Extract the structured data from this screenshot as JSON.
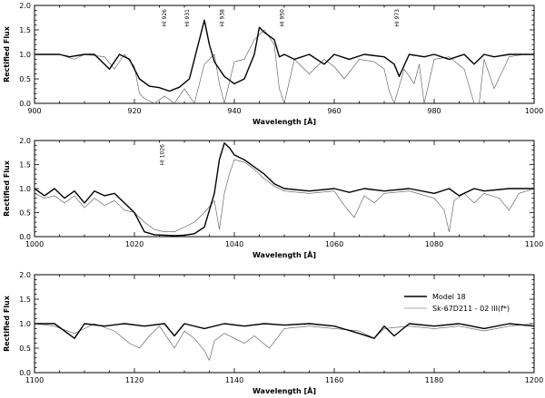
{
  "chart_data": [
    {
      "type": "line",
      "xlim": [
        900,
        1000
      ],
      "ylim": [
        0,
        2.0
      ],
      "xticks": [
        900,
        920,
        940,
        960,
        980,
        1000
      ],
      "yticks": [
        0.0,
        0.5,
        1.0,
        1.5,
        2.0
      ],
      "xlabel": "Wavelength [Å]",
      "ylabel": "Rectified Flux",
      "annotations": [
        {
          "text": "HI 926",
          "x": 926
        },
        {
          "text": "HI 931",
          "x": 930.5
        },
        {
          "text": "HI 938",
          "x": 937.5
        },
        {
          "text": "HI 950",
          "x": 949.5
        },
        {
          "text": "HI 973",
          "x": 972.5
        }
      ],
      "series": [
        {
          "name": "Model 18",
          "x": [
            900,
            905,
            907,
            910,
            912,
            915,
            917,
            919,
            921,
            923,
            925,
            927,
            929,
            931,
            932,
            934,
            935,
            936,
            938,
            940,
            942,
            944,
            945,
            946,
            948,
            949,
            950,
            952,
            955,
            958,
            960,
            963,
            966,
            970,
            972,
            973,
            975,
            978,
            980,
            983,
            986,
            988,
            990,
            992,
            995,
            998,
            1000
          ],
          "y": [
            1.0,
            1.0,
            0.95,
            1.0,
            1.0,
            0.7,
            1.0,
            0.9,
            0.5,
            0.35,
            0.32,
            0.25,
            0.33,
            0.5,
            0.9,
            1.7,
            1.2,
            0.85,
            0.55,
            0.4,
            0.5,
            1.0,
            1.55,
            1.45,
            1.3,
            0.95,
            1.0,
            0.9,
            1.0,
            0.8,
            1.0,
            0.9,
            1.0,
            0.95,
            0.8,
            0.55,
            1.0,
            0.95,
            1.0,
            0.9,
            1.0,
            0.8,
            1.0,
            0.95,
            1.0,
            1.0,
            1.0
          ]
        },
        {
          "name": "Sk-67D211 - 02 III(f*)",
          "x": [
            900,
            905,
            908,
            910,
            914,
            916,
            918,
            920,
            921,
            922,
            924,
            926,
            928,
            930,
            932,
            934,
            936,
            937,
            938,
            940,
            942,
            944,
            946,
            948,
            949,
            950,
            952,
            955,
            958,
            960,
            962,
            965,
            968,
            970,
            971,
            972,
            974,
            976,
            977,
            978,
            980,
            983,
            986,
            988,
            989,
            990,
            992,
            995,
            998,
            1000
          ],
          "y": [
            1.0,
            1.0,
            0.9,
            1.0,
            0.95,
            0.7,
            1.0,
            0.75,
            0.2,
            0.1,
            0.0,
            0.15,
            0.0,
            0.3,
            0.0,
            0.8,
            1.0,
            0.4,
            0.0,
            0.85,
            0.9,
            1.3,
            1.5,
            1.2,
            0.3,
            0.0,
            0.9,
            0.6,
            0.9,
            0.75,
            0.5,
            0.9,
            0.85,
            0.7,
            0.25,
            0.0,
            0.7,
            0.4,
            0.8,
            0.0,
            0.9,
            0.95,
            0.7,
            0.0,
            0.0,
            0.9,
            0.3,
            0.95,
            1.0,
            1.0
          ]
        }
      ]
    },
    {
      "type": "line",
      "xlim": [
        1000,
        1100
      ],
      "ylim": [
        0,
        2.0
      ],
      "xticks": [
        1000,
        1020,
        1040,
        1060,
        1080,
        1100
      ],
      "yticks": [
        0.0,
        0.5,
        1.0,
        1.5,
        2.0
      ],
      "xlabel": "Wavelength [Å]",
      "ylabel": "Rectified Flux",
      "annotations": [
        {
          "text": "HI 1026",
          "x": 1025.5
        }
      ],
      "series": [
        {
          "name": "Model 18",
          "x": [
            1000,
            1002,
            1004,
            1006,
            1008,
            1010,
            1012,
            1014,
            1016,
            1018,
            1020,
            1022,
            1024,
            1026,
            1028,
            1030,
            1032,
            1034,
            1036,
            1037,
            1038,
            1039,
            1040,
            1042,
            1044,
            1046,
            1048,
            1050,
            1055,
            1060,
            1063,
            1066,
            1070,
            1075,
            1080,
            1083,
            1085,
            1088,
            1090,
            1095,
            1100
          ],
          "y": [
            1.0,
            0.85,
            1.0,
            0.8,
            0.95,
            0.7,
            0.95,
            0.85,
            0.9,
            0.7,
            0.5,
            0.1,
            0.04,
            0.03,
            0.02,
            0.03,
            0.06,
            0.2,
            0.9,
            1.6,
            1.95,
            1.85,
            1.7,
            1.6,
            1.45,
            1.3,
            1.1,
            1.0,
            0.95,
            1.0,
            0.92,
            1.0,
            0.95,
            1.0,
            0.9,
            1.0,
            0.85,
            1.0,
            0.95,
            1.0,
            1.0
          ]
        },
        {
          "name": "Sk-67D211 - 02 III(f*)",
          "x": [
            1000,
            1002,
            1004,
            1006,
            1008,
            1010,
            1012,
            1014,
            1016,
            1018,
            1020,
            1022,
            1024,
            1026,
            1028,
            1030,
            1032,
            1034,
            1036,
            1037,
            1038,
            1039,
            1040,
            1042,
            1044,
            1046,
            1048,
            1050,
            1055,
            1060,
            1062,
            1064,
            1066,
            1068,
            1070,
            1075,
            1080,
            1082,
            1083,
            1084,
            1086,
            1088,
            1090,
            1093,
            1095,
            1097,
            1100
          ],
          "y": [
            0.9,
            0.8,
            0.85,
            0.7,
            0.85,
            0.6,
            0.8,
            0.65,
            0.75,
            0.55,
            0.5,
            0.3,
            0.15,
            0.1,
            0.1,
            0.2,
            0.3,
            0.5,
            0.75,
            0.15,
            0.9,
            1.3,
            1.6,
            1.55,
            1.4,
            1.2,
            1.05,
            0.95,
            0.9,
            0.95,
            0.65,
            0.4,
            0.85,
            0.7,
            0.9,
            0.95,
            0.8,
            0.55,
            0.1,
            0.75,
            0.9,
            0.7,
            0.9,
            0.8,
            0.55,
            0.9,
            1.0
          ]
        }
      ]
    },
    {
      "type": "line",
      "xlim": [
        1100,
        1200
      ],
      "ylim": [
        0,
        2.0
      ],
      "xticks": [
        1100,
        1120,
        1140,
        1160,
        1180,
        1200
      ],
      "yticks": [
        0.0,
        0.5,
        1.0,
        1.5,
        2.0
      ],
      "xlabel": "Wavelength [Å]",
      "ylabel": "Rectified Flux",
      "legend": "right",
      "series": [
        {
          "name": "Model 18",
          "x": [
            1100,
            1104,
            1108,
            1110,
            1114,
            1118,
            1122,
            1126,
            1128,
            1130,
            1134,
            1138,
            1142,
            1146,
            1150,
            1155,
            1160,
            1165,
            1168,
            1170,
            1172,
            1175,
            1180,
            1185,
            1190,
            1195,
            1200
          ],
          "y": [
            1.0,
            1.0,
            0.7,
            1.0,
            0.95,
            1.0,
            0.95,
            1.0,
            0.75,
            1.0,
            0.9,
            1.0,
            0.95,
            1.0,
            0.97,
            1.0,
            0.95,
            0.8,
            0.7,
            0.95,
            0.75,
            1.0,
            0.95,
            1.0,
            0.9,
            1.0,
            0.95
          ]
        },
        {
          "name": "Sk-67D211 - 02 III(f*)",
          "x": [
            1100,
            1104,
            1108,
            1112,
            1116,
            1119,
            1121,
            1123,
            1125,
            1128,
            1130,
            1132,
            1134,
            1135,
            1136,
            1138,
            1140,
            1142,
            1144,
            1147,
            1150,
            1155,
            1160,
            1165,
            1168,
            1170,
            1175,
            1180,
            1185,
            1190,
            1195,
            1200
          ],
          "y": [
            1.0,
            0.95,
            0.8,
            1.0,
            0.85,
            0.6,
            0.5,
            0.75,
            0.95,
            0.5,
            0.85,
            0.7,
            0.45,
            0.25,
            0.65,
            0.8,
            0.7,
            0.6,
            0.75,
            0.5,
            0.9,
            0.95,
            0.9,
            0.85,
            0.7,
            0.9,
            0.95,
            0.9,
            0.95,
            0.85,
            0.95,
            1.0
          ]
        }
      ]
    }
  ],
  "legend": {
    "model_label": "Model 18",
    "observed_label": "Sk-67D211 - 02 III(f*)"
  }
}
